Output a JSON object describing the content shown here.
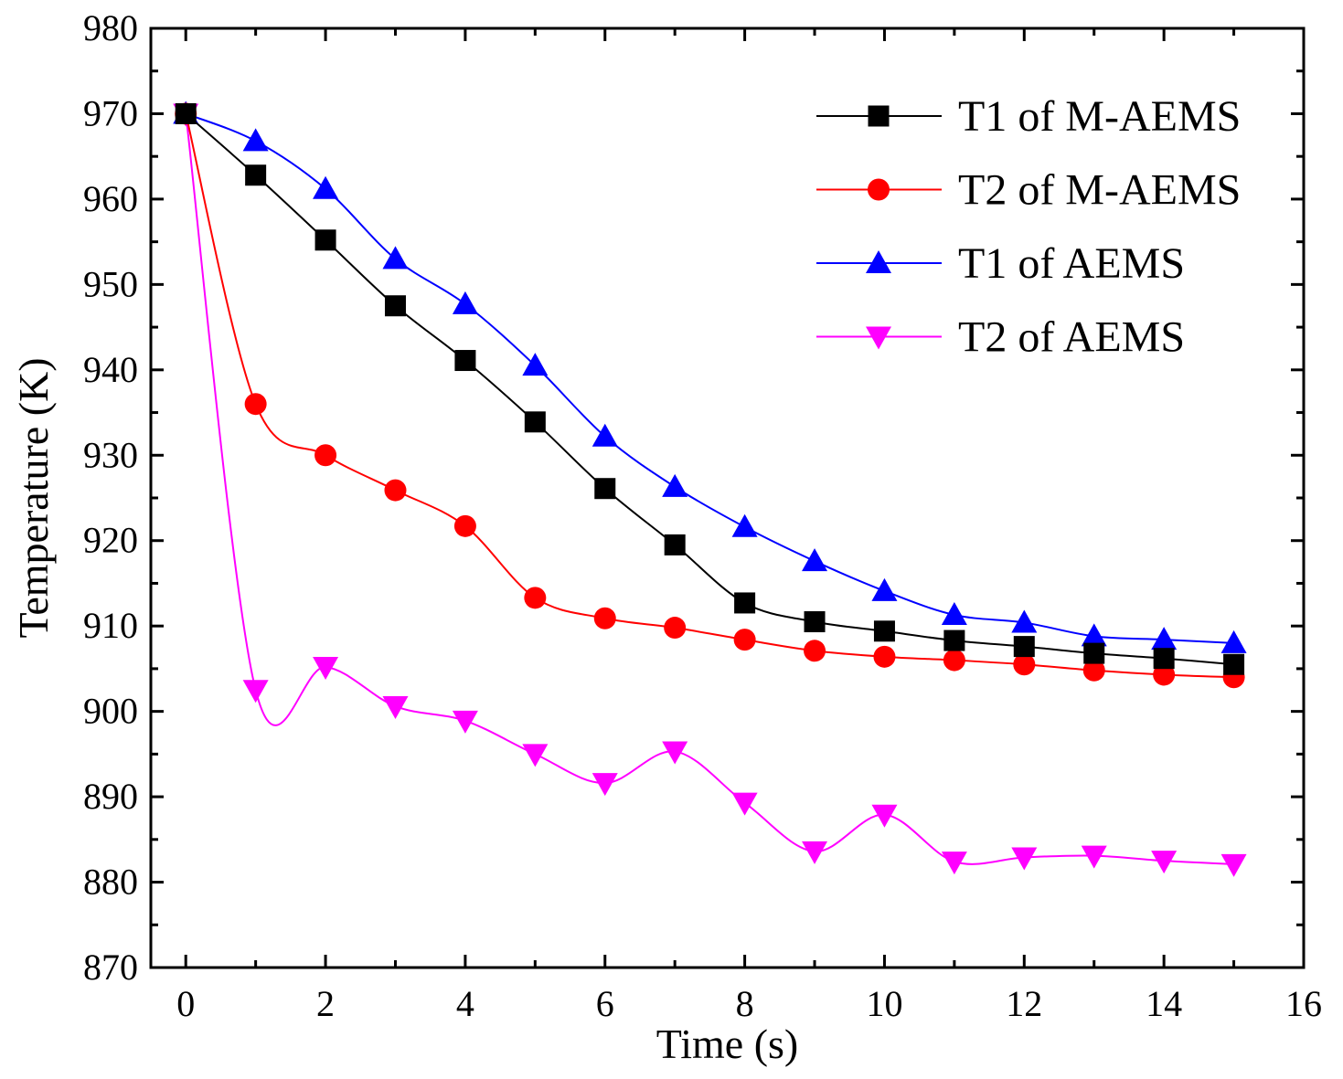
{
  "chart_data": {
    "type": "line",
    "title": "",
    "xlabel": "Time (s)",
    "ylabel": "Temperature (K)",
    "xlim": [
      -0.5,
      16
    ],
    "ylim": [
      870,
      980
    ],
    "xticks": [
      0,
      2,
      4,
      6,
      8,
      10,
      12,
      14,
      16
    ],
    "yticks": [
      870,
      880,
      890,
      900,
      910,
      920,
      930,
      940,
      950,
      960,
      970,
      980
    ],
    "x": [
      0,
      1,
      2,
      3,
      4,
      5,
      6,
      7,
      8,
      9,
      10,
      11,
      12,
      13,
      14,
      15
    ],
    "legend_position": "top-right",
    "grid": false,
    "series": [
      {
        "name": "T1 of M-AEMS",
        "color": "#000000",
        "marker": "square",
        "values": [
          970,
          962.8,
          955.2,
          947.5,
          941.1,
          933.9,
          926.1,
          919.5,
          912.7,
          910.5,
          909.4,
          908.3,
          907.6,
          906.8,
          906.2,
          905.5
        ]
      },
      {
        "name": "T2 of M-AEMS",
        "color": "#ff0000",
        "marker": "circle",
        "values": [
          970,
          936,
          930,
          925.9,
          921.7,
          913.3,
          910.9,
          909.8,
          908.4,
          907.1,
          906.4,
          906.0,
          905.5,
          904.8,
          904.3,
          904.0
        ]
      },
      {
        "name": "T1 of AEMS",
        "color": "#0000ff",
        "marker": "triangle-up",
        "values": [
          970,
          966.8,
          961.2,
          953.0,
          947.7,
          940.5,
          932.2,
          926.3,
          921.6,
          917.6,
          914.1,
          911.3,
          910.4,
          908.8,
          908.4,
          908.0
        ]
      },
      {
        "name": "T2 of AEMS",
        "color": "#ff00ff",
        "marker": "triangle-down",
        "values": [
          970,
          902.5,
          905.2,
          900.6,
          898.9,
          895.0,
          891.6,
          895.3,
          889.3,
          883.6,
          887.9,
          882.4,
          882.9,
          883.1,
          882.5,
          882.1
        ]
      }
    ]
  }
}
